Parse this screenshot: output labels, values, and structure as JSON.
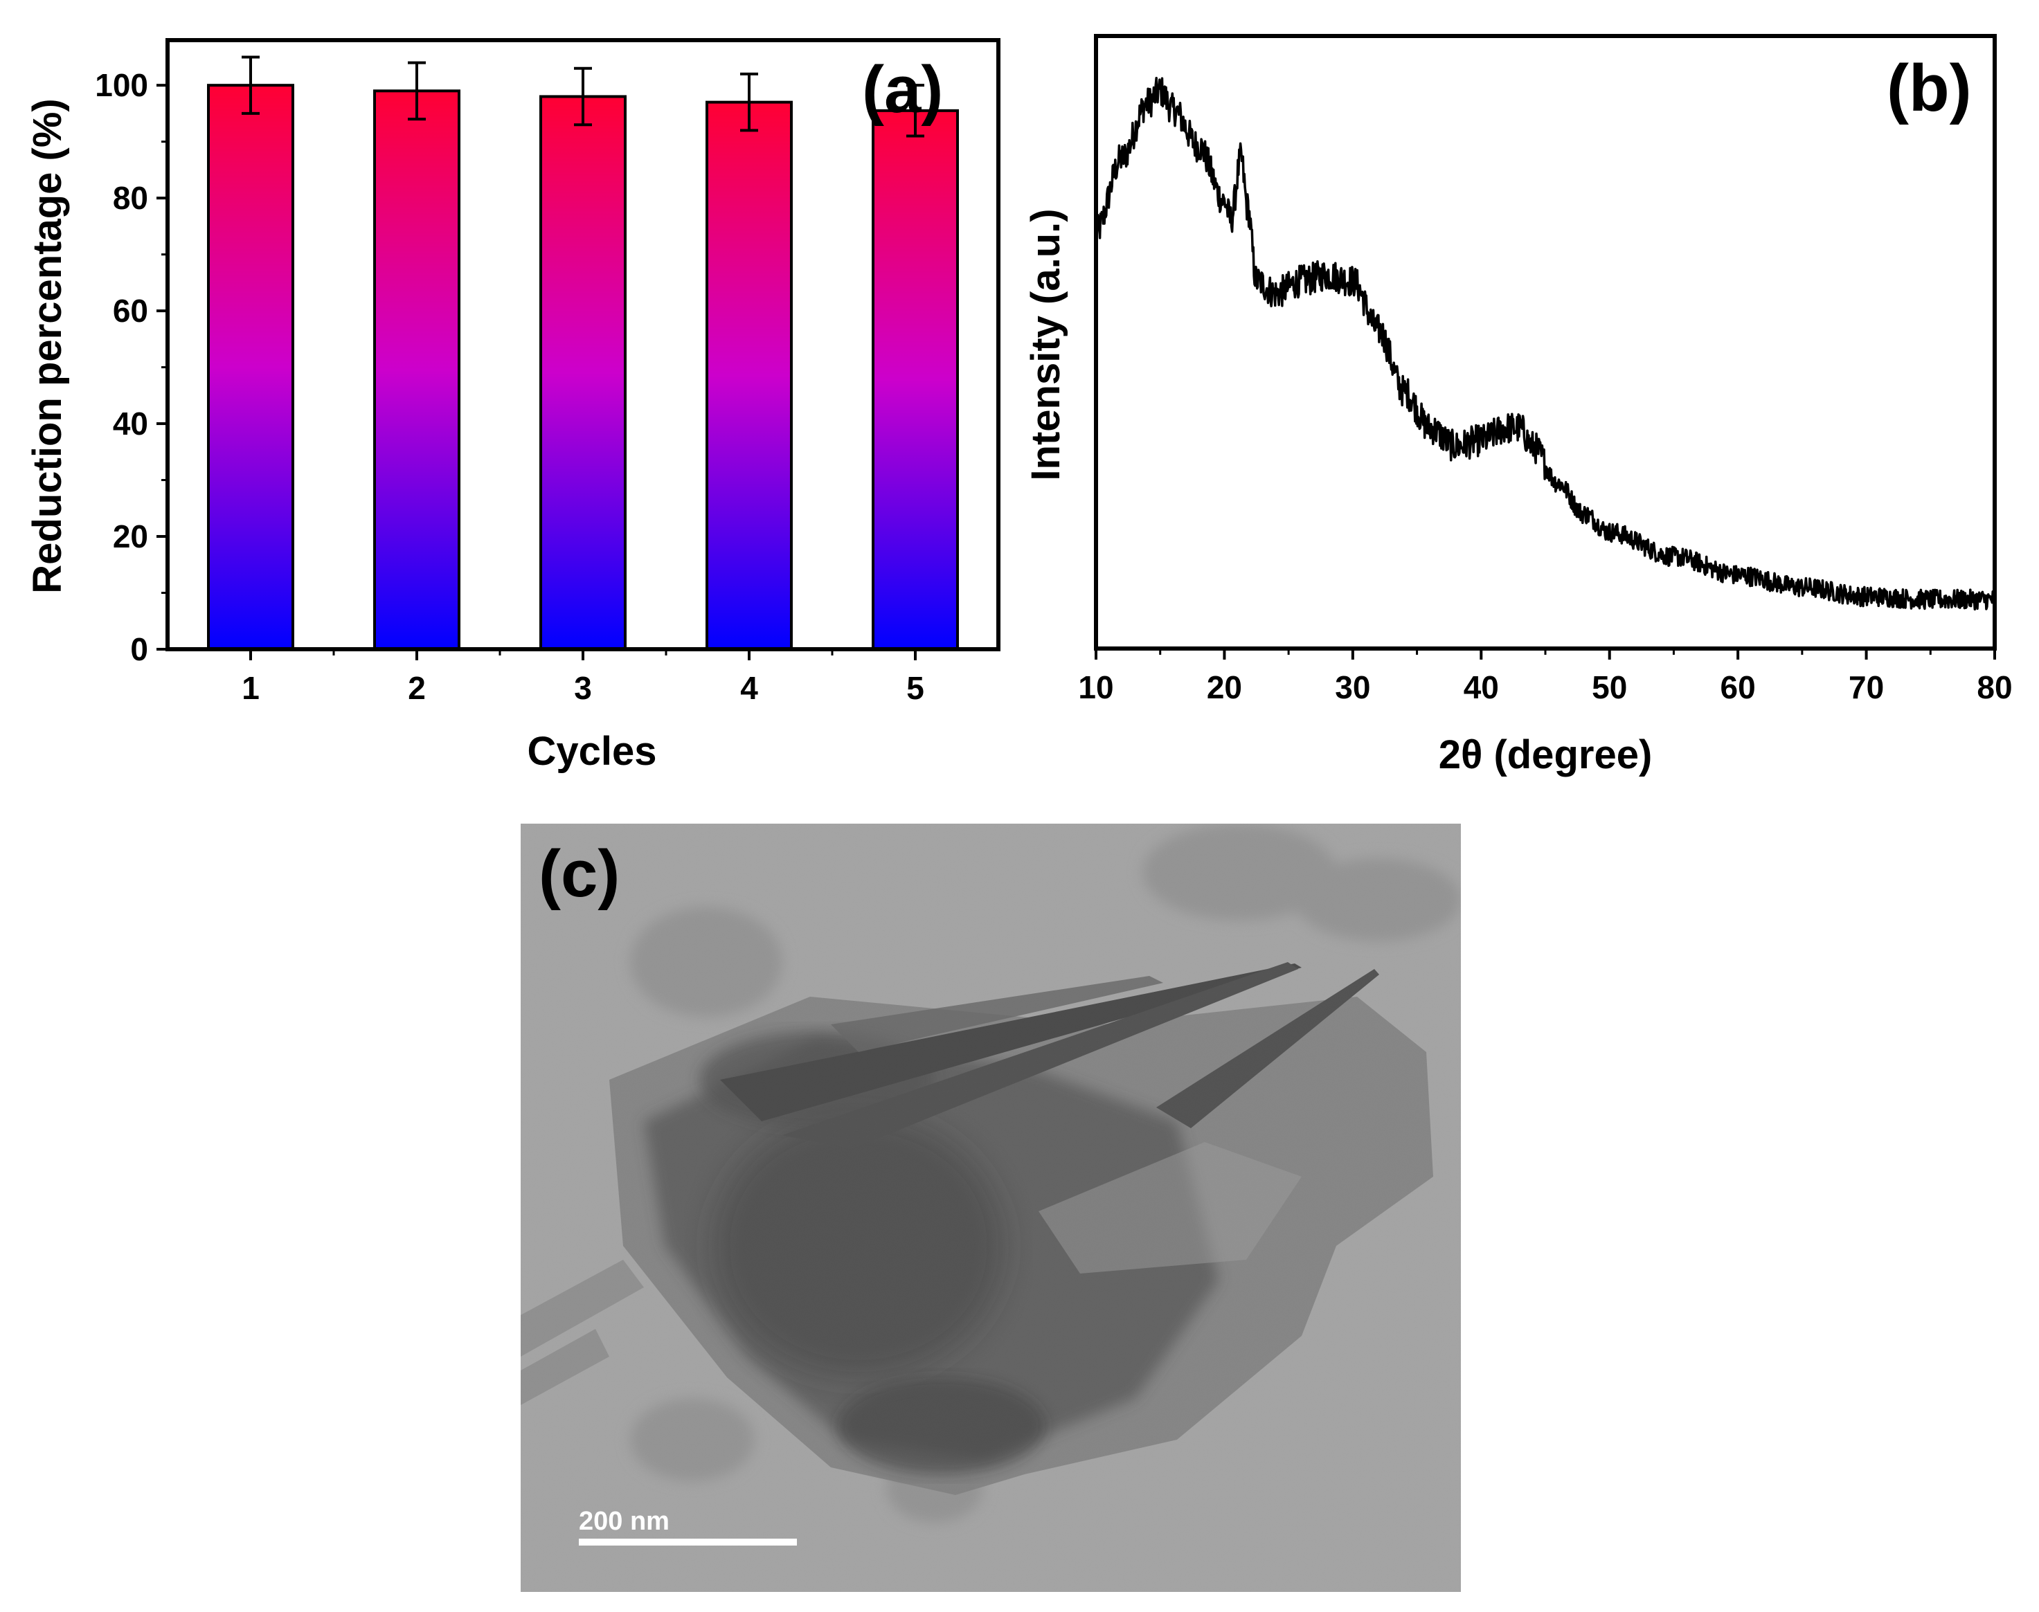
{
  "chart_data": [
    {
      "panel": "(a)",
      "type": "bar",
      "xlabel": "Cycles",
      "ylabel": "Reduction percentage (%)",
      "categories": [
        "1",
        "2",
        "3",
        "4",
        "5"
      ],
      "values": [
        100,
        99,
        98,
        97,
        95.5
      ],
      "errors": [
        5,
        5,
        5,
        5,
        4.5
      ],
      "ylim": [
        0,
        108
      ],
      "yticks": [
        "0",
        "20",
        "40",
        "60",
        "80",
        "100"
      ],
      "colors": {
        "top": "#ff0033",
        "mid": "#cc00cc",
        "bottom": "#0000ff"
      }
    },
    {
      "panel": "(b)",
      "type": "line",
      "xlabel": "2θ (degree)",
      "ylabel": "Intensity (a.u.)",
      "xlim": [
        10,
        80
      ],
      "xticks": [
        "10",
        "20",
        "30",
        "40",
        "50",
        "60",
        "70",
        "80"
      ],
      "ylim": [
        0,
        100
      ],
      "x": [
        10,
        12,
        14,
        15,
        16,
        18,
        20,
        20.5,
        21.3,
        21.8,
        22.5,
        24,
        26,
        28,
        30,
        32,
        34,
        36,
        38,
        40,
        42,
        43,
        44,
        46,
        48,
        50,
        55,
        60,
        65,
        70,
        75,
        80
      ],
      "y": [
        68,
        80,
        89,
        91,
        88,
        82,
        73,
        70,
        80,
        72,
        60,
        58,
        60,
        61,
        60,
        52,
        42,
        36,
        33,
        34,
        36,
        36,
        33,
        27,
        22,
        19,
        15,
        12,
        10,
        8.5,
        8,
        8
      ]
    },
    {
      "panel": "(c)",
      "type": "image",
      "scale_bar": "200 nm"
    }
  ],
  "palette": {
    "axis": "#000000",
    "tem_background": "#a6a6a6",
    "tem_dark": "#1c1c1c",
    "scale_bar": "#ffffff"
  }
}
